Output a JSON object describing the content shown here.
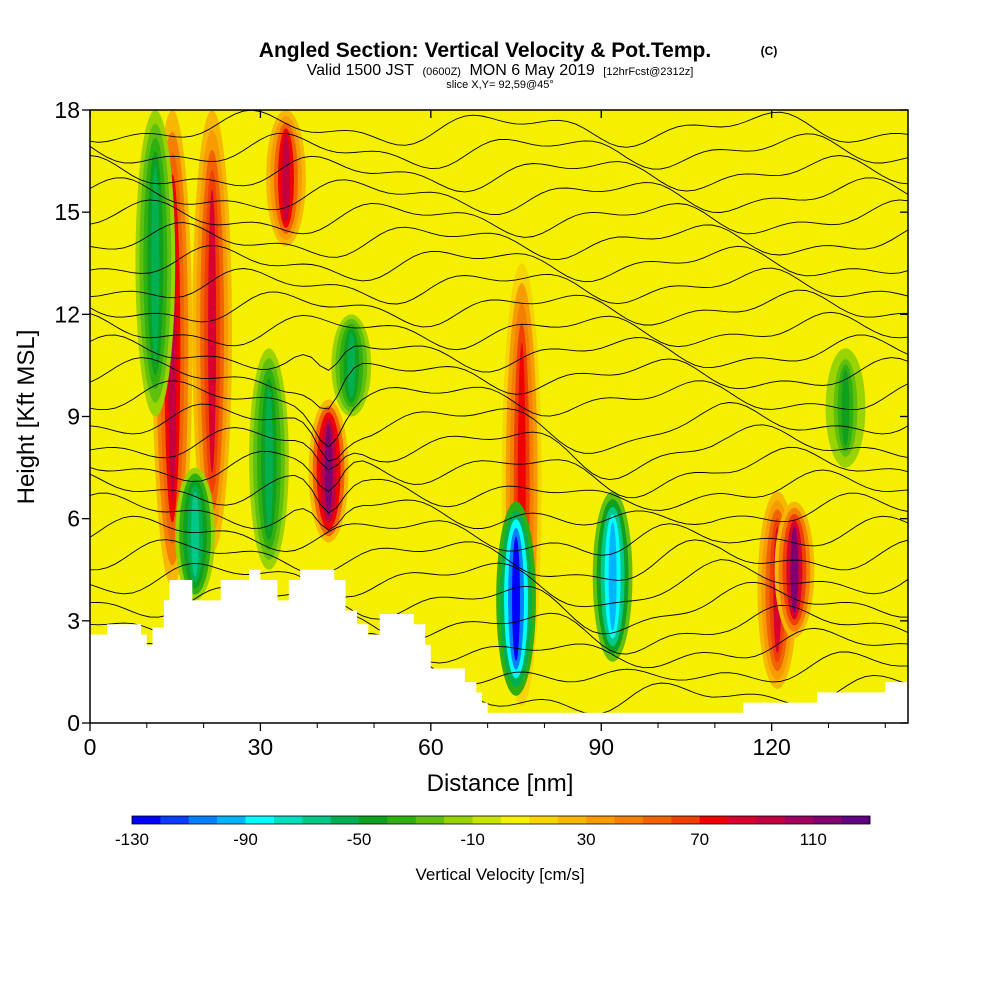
{
  "header": {
    "title": "Angled Section: Vertical Velocity & Pot.Temp.",
    "title_tag": "(C)",
    "valid_prefix": "Valid 1500 JST",
    "valid_utc": "(0600Z)",
    "valid_date": "MON 6 May 2019",
    "forecast_tag": "[12hrFcst@2312z]",
    "slice": "slice X,Y= 92,59@45°"
  },
  "colors": {
    "bg_fill": "#f5ef00",
    "terrain": "#ffffff",
    "contour": "#000000",
    "frame": "#000000"
  },
  "chart_data": {
    "type": "heatmap",
    "xlabel": "Distance [nm]",
    "ylabel": "Height [Kft MSL]",
    "xlim": [
      0,
      144
    ],
    "ylim": [
      0,
      18
    ],
    "x_ticks": [
      "0",
      "30",
      "60",
      "90",
      "120"
    ],
    "y_ticks": [
      "0",
      "3",
      "6",
      "9",
      "12",
      "15",
      "18"
    ],
    "colorbar": {
      "label": "Vertical Velocity [cm/s]",
      "tick_labels": [
        "-130",
        "-90",
        "-50",
        "-10",
        "30",
        "70",
        "110"
      ],
      "levels": [
        -130,
        -120,
        -110,
        -100,
        -90,
        -80,
        -70,
        -60,
        -50,
        -40,
        -30,
        -20,
        -10,
        0,
        10,
        20,
        30,
        40,
        50,
        60,
        70,
        80,
        90,
        100,
        110,
        120
      ],
      "colors": [
        "#0000ff",
        "#0a3cff",
        "#0080ff",
        "#00b4ff",
        "#00ffff",
        "#00e0c0",
        "#00c888",
        "#00b050",
        "#10a020",
        "#30b010",
        "#60c010",
        "#9ad400",
        "#c8e600",
        "#f5ef00",
        "#f8d400",
        "#f8b800",
        "#f79c00",
        "#f58000",
        "#f26400",
        "#f04000",
        "#f00000",
        "#d80030",
        "#c00040",
        "#a00060",
        "#800070",
        "#600080"
      ]
    },
    "features": [
      {
        "x": 14.5,
        "bottom": 4,
        "top": 18,
        "w": 60,
        "peak": 95
      },
      {
        "x": 21.5,
        "bottom": 5,
        "top": 18,
        "w": 60,
        "peak": 85
      },
      {
        "x": 11.5,
        "bottom": 9,
        "top": 18,
        "w": 60,
        "peak": -60
      },
      {
        "x": 18.5,
        "bottom": 3.6,
        "top": 7.5,
        "w": 60,
        "peak": -70
      },
      {
        "x": 31.5,
        "bottom": 4.5,
        "top": 11,
        "w": 60,
        "peak": -60
      },
      {
        "x": 34.5,
        "bottom": 14,
        "top": 18,
        "w": 60,
        "peak": 90
      },
      {
        "x": 42,
        "bottom": 5.3,
        "top": 9.5,
        "w": 60,
        "peak": 115
      },
      {
        "x": 46,
        "bottom": 9,
        "top": 12,
        "w": 60,
        "peak": -60
      },
      {
        "x": 76,
        "bottom": 0.5,
        "top": 13.5,
        "w": 60,
        "peak": 75
      },
      {
        "x": 75,
        "bottom": 0.8,
        "top": 6.5,
        "w": 60,
        "peak": -130
      },
      {
        "x": 92,
        "bottom": 1.8,
        "top": 6.8,
        "w": 60,
        "peak": -100
      },
      {
        "x": 121,
        "bottom": 1,
        "top": 6.8,
        "w": 60,
        "peak": 85
      },
      {
        "x": 124,
        "bottom": 2.5,
        "top": 6.5,
        "w": 60,
        "peak": 110
      },
      {
        "x": 133,
        "bottom": 7.5,
        "top": 11,
        "w": 60,
        "peak": -45
      }
    ],
    "terrain_profile": [
      {
        "x": 0,
        "h": 2.6
      },
      {
        "x": 3,
        "h": 2.9
      },
      {
        "x": 7,
        "h": 2.9
      },
      {
        "x": 9,
        "h": 2.6
      },
      {
        "x": 10,
        "h": 2.3
      },
      {
        "x": 11,
        "h": 2.8
      },
      {
        "x": 13,
        "h": 3.6
      },
      {
        "x": 14,
        "h": 4.2
      },
      {
        "x": 16,
        "h": 4.2
      },
      {
        "x": 18,
        "h": 3.6
      },
      {
        "x": 21,
        "h": 3.6
      },
      {
        "x": 23,
        "h": 4.2
      },
      {
        "x": 28,
        "h": 4.5
      },
      {
        "x": 30,
        "h": 4.2
      },
      {
        "x": 33,
        "h": 3.6
      },
      {
        "x": 35,
        "h": 4.2
      },
      {
        "x": 37,
        "h": 4.5
      },
      {
        "x": 41,
        "h": 4.5
      },
      {
        "x": 43,
        "h": 4.2
      },
      {
        "x": 45,
        "h": 3.3
      },
      {
        "x": 47,
        "h": 2.9
      },
      {
        "x": 49,
        "h": 2.6
      },
      {
        "x": 51,
        "h": 3.2
      },
      {
        "x": 55,
        "h": 3.2
      },
      {
        "x": 57,
        "h": 2.9
      },
      {
        "x": 59,
        "h": 2.3
      },
      {
        "x": 60,
        "h": 1.6
      },
      {
        "x": 64,
        "h": 1.6
      },
      {
        "x": 66,
        "h": 1.2
      },
      {
        "x": 68,
        "h": 0.9
      },
      {
        "x": 69,
        "h": 0.6
      },
      {
        "x": 70,
        "h": 0.3
      },
      {
        "x": 114,
        "h": 0.3
      },
      {
        "x": 115,
        "h": 0.6
      },
      {
        "x": 126,
        "h": 0.6
      },
      {
        "x": 128,
        "h": 0.9
      },
      {
        "x": 138,
        "h": 0.9
      },
      {
        "x": 140,
        "h": 1.2
      },
      {
        "x": 144,
        "h": 1.2
      }
    ]
  }
}
